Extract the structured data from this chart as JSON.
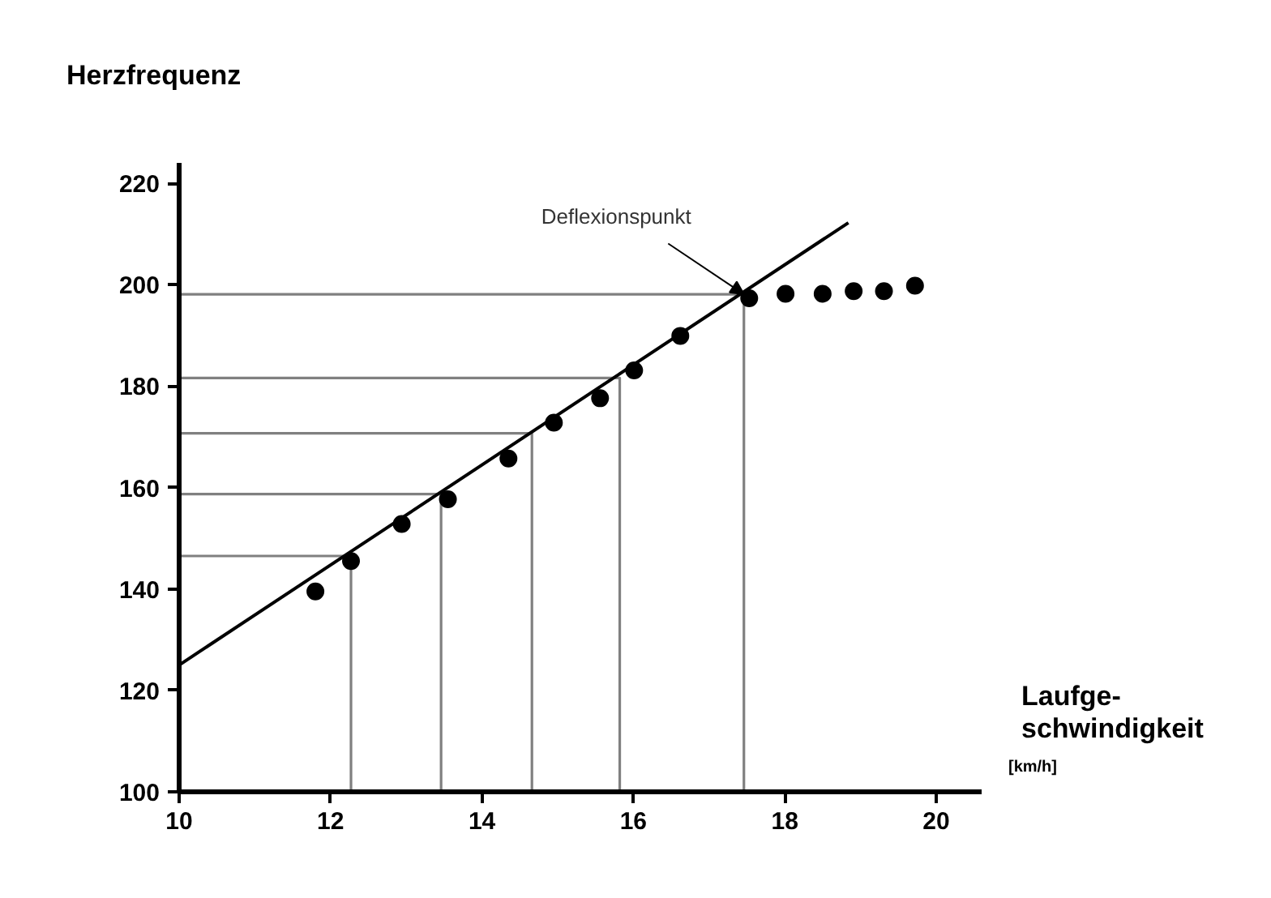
{
  "chart_data": {
    "type": "scatter",
    "ylabel": "Herzfrequenz",
    "xlabel": "Laufge-\nschwindigkeit",
    "annotations": [
      {
        "text": "Deflexionspunkt",
        "x": 17.46,
        "y": 198.1
      },
      "[km/h]"
    ],
    "xlim": [
      10,
      20.6
    ],
    "ylim": [
      100,
      224
    ],
    "xticks": [
      10,
      12,
      14,
      16,
      18,
      20
    ],
    "yticks": [
      100,
      120,
      140,
      160,
      180,
      200,
      220
    ],
    "grid": false,
    "series": [
      {
        "type": "line",
        "color": "#808080",
        "x": [
          10,
          12.27,
          12.27
        ],
        "values": [
          146.5,
          146.5,
          100
        ]
      },
      {
        "type": "line",
        "color": "#808080",
        "x": [
          10,
          13.46,
          13.46
        ],
        "values": [
          158.7,
          158.7,
          100
        ]
      },
      {
        "type": "line",
        "color": "#808080",
        "x": [
          10,
          14.66,
          14.66
        ],
        "values": [
          170.7,
          170.7,
          100
        ]
      },
      {
        "type": "line",
        "color": "#808080",
        "x": [
          10,
          15.82,
          15.82
        ],
        "values": [
          181.6,
          181.6,
          100
        ]
      },
      {
        "type": "line",
        "color": "#808080",
        "x": [
          10,
          17.46,
          17.46
        ],
        "values": [
          198.1,
          198.1,
          100
        ]
      },
      {
        "type": "line",
        "color": "#000000",
        "x": [
          10,
          18.84
        ],
        "values": [
          125,
          212.2
        ]
      },
      {
        "marker": "circle",
        "color": "#000000",
        "x": [
          11.8,
          12.27,
          12.94,
          13.55,
          14.35,
          14.95,
          15.56,
          16.01,
          16.62,
          17.53,
          18.01,
          18.5,
          18.91,
          19.31,
          19.72
        ],
        "values": [
          139.5,
          145.5,
          152.8,
          157.7,
          165.7,
          172.8,
          177.6,
          183.1,
          189.9,
          197.3,
          198.2,
          198.2,
          198.7,
          198.7,
          199.8
        ]
      }
    ]
  }
}
